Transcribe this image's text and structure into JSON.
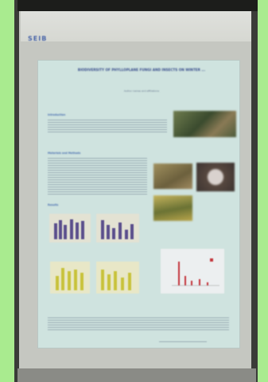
{
  "logo": "SEIB",
  "poster": {
    "title": "BIODIVERSITY OF PHYLLOPLANE FUNGI AND INSECTS ON WINTER ...",
    "authors": "Author names and affiliations",
    "section_intro": "Introduction",
    "section_methods": "Materials and Methods",
    "section_results": "Results"
  },
  "colors": {
    "background": "#a9eb8f",
    "poster": "#cfe3df",
    "title": "#3b4f8d",
    "bars_purple": "#5a4e8c",
    "bars_yellow": "#c8c23a"
  }
}
